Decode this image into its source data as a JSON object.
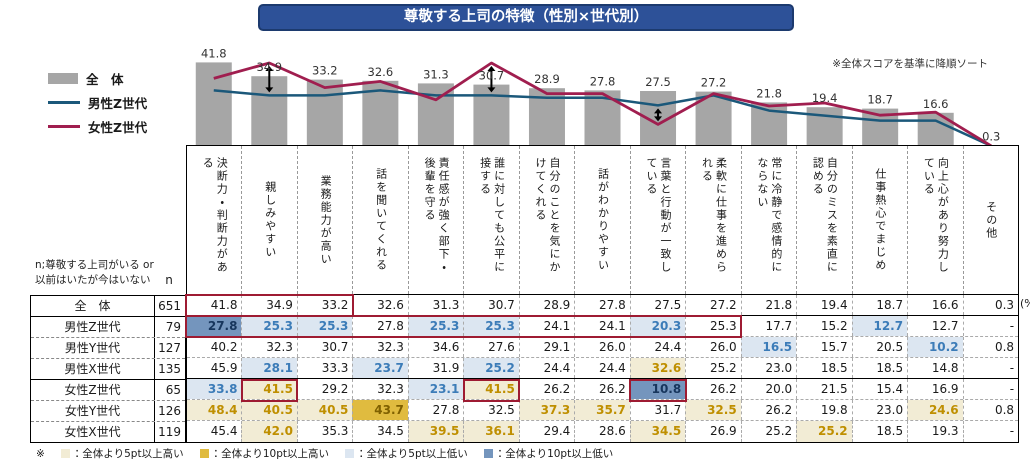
{
  "title": "尊敬する上司の特徴（性別×世代別）",
  "sort_note": "※全体スコアを基準に降順ソート",
  "unit_label": "(%)",
  "n_note_line1": "n;尊敬する上司がいる or",
  "n_note_line2": "以前はいたが今はいない",
  "n_header": "n",
  "legend": {
    "overall": "全　体",
    "male_z": "男性Z世代",
    "female_z": "女性Z世代"
  },
  "colors": {
    "bar": "#a6a6a6",
    "male_line": "#1b587a",
    "female_line": "#a01e4f",
    "high5_bg": "#f2ecd5",
    "high10_bg": "#e0bb3f",
    "low5_bg": "#dce6f1",
    "low10_bg": "#7495bd",
    "red_box": "#9e1b32",
    "title_bg": "#2d5198",
    "value_label": "#333333"
  },
  "chart_data": {
    "type": "bar+line",
    "title": "尊敬する上司の特徴（性別×世代別）",
    "note": "※全体スコアを基準に降順ソート",
    "ylim": [
      0,
      50
    ],
    "grid": false,
    "legend_position": "left",
    "categories": [
      "決断力・判断力がある",
      "親しみやすい",
      "業務能力が高い",
      "話を聞いてくれる",
      "責任感が強く部下・後輩を守る",
      "誰に対しても公平に接する",
      "自分のことを気にかけてくれる",
      "話がわかりやすい",
      "言葉と行動が一致している",
      "柔軟に仕事を進められる",
      "常に冷静で感情的にならない",
      "自分のミスを素直に認める",
      "仕事熱心でまじめ",
      "向上心があり努力している",
      "その他"
    ],
    "series": [
      {
        "name": "全体",
        "type": "bar",
        "values": [
          41.8,
          34.9,
          33.2,
          32.6,
          31.3,
          30.7,
          28.9,
          27.8,
          27.5,
          27.2,
          21.8,
          19.4,
          18.7,
          16.6,
          0.3
        ]
      },
      {
        "name": "男性Z世代",
        "type": "line",
        "values": [
          27.8,
          25.3,
          25.3,
          27.8,
          25.3,
          25.3,
          24.1,
          24.1,
          20.3,
          25.3,
          17.7,
          15.2,
          12.7,
          12.7,
          0
        ]
      },
      {
        "name": "女性Z世代",
        "type": "line",
        "values": [
          33.8,
          41.5,
          29.2,
          32.3,
          23.1,
          41.5,
          26.2,
          26.2,
          10.8,
          26.2,
          20.0,
          21.5,
          15.4,
          16.9,
          0
        ]
      }
    ],
    "bar_value_labels": [
      "41.8",
      "34.9",
      "33.2",
      "32.6",
      "31.3",
      "30.7",
      "28.9",
      "27.8",
      "27.5",
      "27.2",
      "21.8",
      "19.4",
      "18.7",
      "16.6",
      "0.3"
    ],
    "significance_arrow_columns": [
      2,
      6,
      9
    ]
  },
  "table": {
    "rows": [
      {
        "label": "全　体",
        "n": "651",
        "values": [
          "41.8",
          "34.9",
          "33.2",
          "32.6",
          "31.3",
          "30.7",
          "28.9",
          "27.8",
          "27.5",
          "27.2",
          "21.8",
          "19.4",
          "18.7",
          "16.6",
          "0.3"
        ],
        "highlights": [
          "",
          "",
          "",
          "",
          "",
          "",
          "",
          "",
          "",
          "",
          "",
          "",
          "",
          "",
          ""
        ]
      },
      {
        "label": "男性Z世代",
        "n": "79",
        "values": [
          "27.8",
          "25.3",
          "25.3",
          "27.8",
          "25.3",
          "25.3",
          "24.1",
          "24.1",
          "20.3",
          "25.3",
          "17.7",
          "15.2",
          "12.7",
          "12.7",
          "-"
        ],
        "highlights": [
          "l10",
          "l5",
          "l5",
          "",
          "l5",
          "l5",
          "",
          "",
          "l5",
          "",
          "",
          "",
          "l5",
          "",
          ""
        ]
      },
      {
        "label": "男性Y世代",
        "n": "127",
        "values": [
          "40.2",
          "32.3",
          "30.7",
          "32.3",
          "34.6",
          "27.6",
          "29.1",
          "26.0",
          "24.4",
          "26.0",
          "16.5",
          "15.7",
          "20.5",
          "10.2",
          "0.8"
        ],
        "highlights": [
          "",
          "",
          "",
          "",
          "",
          "",
          "",
          "",
          "",
          "",
          "l5",
          "",
          "",
          "l5",
          ""
        ]
      },
      {
        "label": "男性X世代",
        "n": "135",
        "values": [
          "45.9",
          "28.1",
          "33.3",
          "23.7",
          "31.9",
          "25.2",
          "24.4",
          "24.4",
          "32.6",
          "25.2",
          "23.0",
          "18.5",
          "18.5",
          "14.8",
          "-"
        ],
        "highlights": [
          "",
          "l5",
          "",
          "l5",
          "",
          "l5",
          "",
          "",
          "h5",
          "",
          "",
          "",
          "",
          "",
          ""
        ]
      },
      {
        "label": "女性Z世代",
        "n": "65",
        "values": [
          "33.8",
          "41.5",
          "29.2",
          "32.3",
          "23.1",
          "41.5",
          "26.2",
          "26.2",
          "10.8",
          "26.2",
          "20.0",
          "21.5",
          "15.4",
          "16.9",
          "-"
        ],
        "highlights": [
          "l5",
          "h5",
          "",
          "",
          "l5",
          "h5",
          "",
          "",
          "l10",
          "",
          "",
          "",
          "",
          "",
          ""
        ]
      },
      {
        "label": "女性Y世代",
        "n": "126",
        "values": [
          "48.4",
          "40.5",
          "40.5",
          "43.7",
          "27.8",
          "32.5",
          "37.3",
          "35.7",
          "31.7",
          "32.5",
          "26.2",
          "19.8",
          "23.0",
          "24.6",
          "0.8"
        ],
        "highlights": [
          "h5",
          "h5",
          "h5",
          "h10",
          "",
          "",
          "h5",
          "h5",
          "",
          "h5",
          "",
          "",
          "",
          "h5",
          ""
        ]
      },
      {
        "label": "女性X世代",
        "n": "119",
        "values": [
          "45.4",
          "42.0",
          "35.3",
          "34.5",
          "39.5",
          "36.1",
          "29.4",
          "28.6",
          "34.5",
          "26.9",
          "25.2",
          "25.2",
          "18.5",
          "19.3",
          "-"
        ],
        "highlights": [
          "",
          "h5",
          "",
          "",
          "h5",
          "h5",
          "",
          "",
          "h5",
          "",
          "",
          "h5",
          "",
          "",
          ""
        ]
      }
    ],
    "group_end_rows": [
      0,
      3
    ],
    "red_boxes": [
      {
        "row": 0,
        "from": 1,
        "to": 3
      },
      {
        "row": 1,
        "from": 1,
        "to": 10
      },
      {
        "row": 4,
        "from": 2,
        "to": 2
      },
      {
        "row": 4,
        "from": 6,
        "to": 6
      },
      {
        "row": 4,
        "from": 9,
        "to": 9
      }
    ]
  },
  "footnote": {
    "prefix": "※",
    "items": [
      {
        "swatch": "h5",
        "label": "：全体より5pt以上高い"
      },
      {
        "swatch": "h10",
        "label": "：全体より10pt以上高い"
      },
      {
        "swatch": "l5",
        "label": "：全体より5pt以上低い"
      },
      {
        "swatch": "l10",
        "label": "：全体より10pt以上低い"
      }
    ]
  }
}
